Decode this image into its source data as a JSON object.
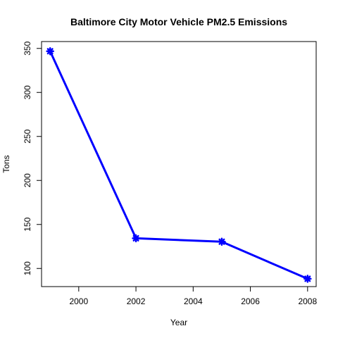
{
  "chart_data": {
    "type": "line",
    "title": "Baltimore City Motor Vehicle PM2.5 Emissions",
    "xlabel": "Year",
    "ylabel": "Tons",
    "x": [
      1999,
      2002,
      2005,
      2008
    ],
    "series": [
      {
        "values": [
          346.8,
          134.3,
          130.4,
          88.3
        ]
      }
    ],
    "xlim": [
      1998.7,
      2008.3
    ],
    "ylim": [
      79.4,
      357.8
    ],
    "xticks": [
      2000,
      2002,
      2004,
      2006,
      2008
    ],
    "yticks": [
      100,
      150,
      200,
      250,
      300,
      350
    ],
    "line_color": "#0000ff",
    "marker": "asterisk",
    "grid": false,
    "legend": "none"
  }
}
